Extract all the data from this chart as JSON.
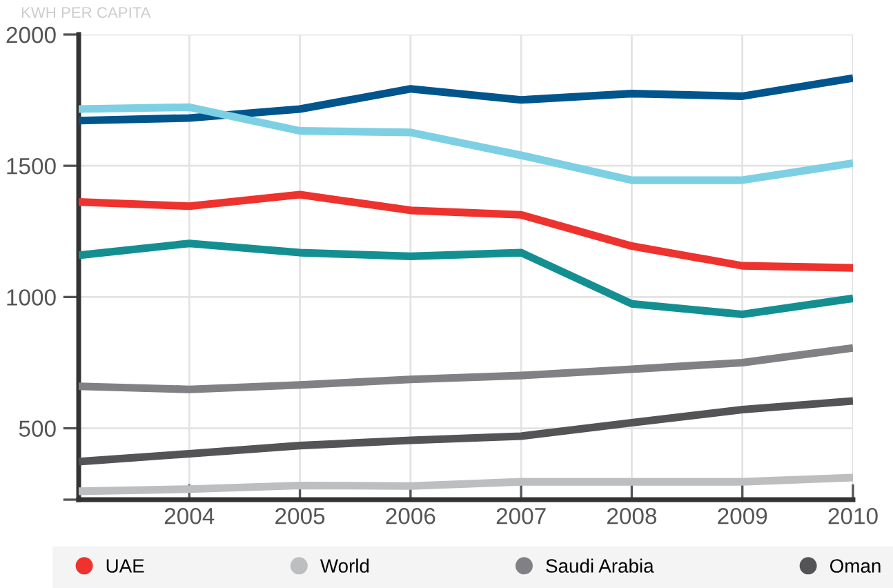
{
  "chart_data": {
    "type": "line",
    "ylabel": "KWH PER CAPITA",
    "x": [
      2003,
      2004,
      2005,
      2006,
      2007,
      2008,
      2009,
      2010
    ],
    "xlim": [
      2003,
      2010
    ],
    "xticks": [
      {
        "value": 2003,
        "label": null
      },
      2004,
      2005,
      2006,
      2007,
      2008,
      2009,
      2010
    ],
    "ylim": [
      228,
      2000
    ],
    "yticks": [
      {
        "value": 228,
        "label": null
      },
      500,
      1000,
      1500,
      2000
    ],
    "grid": true,
    "legend": "bottom",
    "marker": "none",
    "line_style": "solid",
    "series": [
      {
        "color": "#00558c",
        "values": [
          1672,
          1682,
          1716,
          1793,
          1751,
          1775,
          1765,
          1834
        ]
      },
      {
        "color": "#7dd0e3",
        "values": [
          1716,
          1723,
          1633,
          1627,
          1540,
          1445,
          1445,
          1510
        ]
      },
      {
        "color": "#138f92",
        "values": [
          1159,
          1204,
          1169,
          1155,
          1169,
          974,
          934,
          995
        ]
      },
      {
        "name": "UAE",
        "color": "#ee322d",
        "values": [
          1362,
          1346,
          1390,
          1330,
          1313,
          1194,
          1119,
          1111
        ]
      },
      {
        "name": "World",
        "color": "#bdbebf",
        "values": [
          260,
          268,
          282,
          280,
          296,
          296,
          296,
          312
        ]
      },
      {
        "name": "Saudi Arabia",
        "color": "#818185",
        "values": [
          660,
          648,
          665,
          686,
          701,
          725,
          750,
          806
        ]
      },
      {
        "name": "Oman",
        "color": "#545456",
        "values": [
          373,
          403,
          434,
          454,
          470,
          521,
          571,
          604
        ]
      }
    ]
  }
}
